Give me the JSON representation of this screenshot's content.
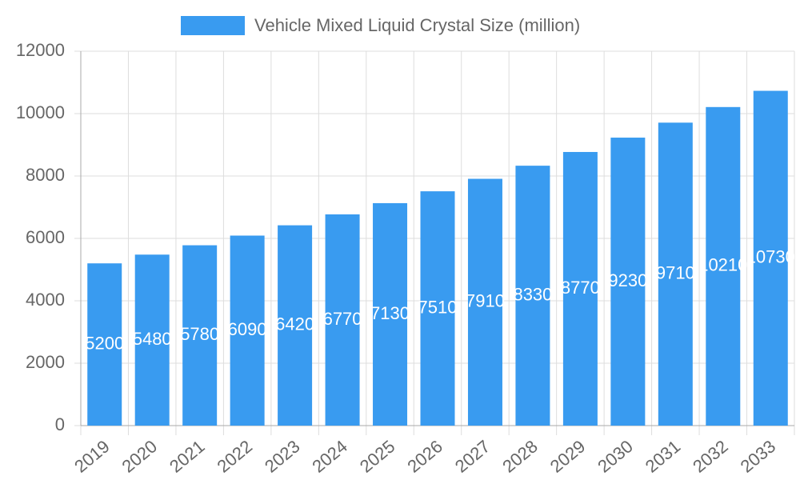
{
  "chart_data": {
    "type": "bar",
    "legend": "Vehicle Mixed Liquid Crystal Size (million)",
    "categories": [
      "2019",
      "2020",
      "2021",
      "2022",
      "2023",
      "2024",
      "2025",
      "2026",
      "2027",
      "2028",
      "2029",
      "2030",
      "2031",
      "2032",
      "2033"
    ],
    "values": [
      5200,
      5480,
      5780,
      6090,
      6420,
      6770,
      7130,
      7510,
      7910,
      8330,
      8770,
      9230,
      9710,
      10210,
      10730
    ],
    "color": "#399bf0",
    "ylim": [
      0,
      12000
    ],
    "yticks": [
      0,
      2000,
      4000,
      6000,
      8000,
      10000,
      12000
    ],
    "grid": true
  }
}
